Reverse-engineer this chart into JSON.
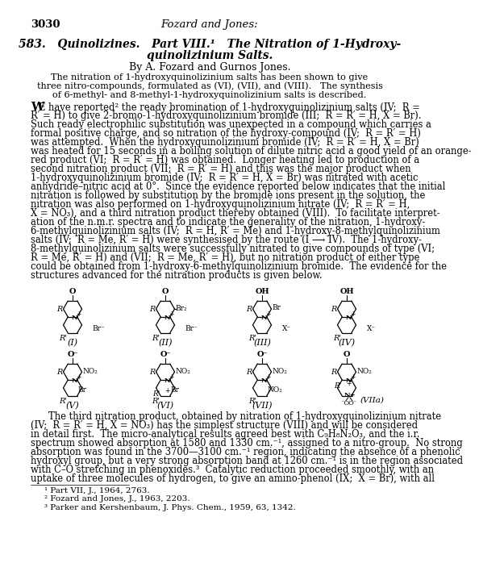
{
  "page_number": "3030",
  "header": "Fozard and Jones:",
  "title_line1": "583.   Quinolizines.   Part VIII.¹   The Nitration of 1-Hydroxy-",
  "title_line2": "quinolizinium Salts.",
  "authors": "By A. Fozard and Gurnos Jones.",
  "abstract": [
    "The nitration of 1-hydroxyquinolizinium salts has been shown to give",
    "three nitro-compounds, formulated as (VI), (VII), and (VIII).   The synthesis",
    "of 6-methyl- and 8-methyl-1-hydroxyquinolizinium salts is described."
  ],
  "body1": [
    "E have reported² the ready bromination of 1-hydroxyquinolizinium salts (IV;  R =",
    "R′ = H) to give 2-bromo-1-hydroxyquinolizinium bromide (III;  R = R′ = H, X = Br).",
    "Such ready electrophilic substitution was unexpected in a compound which carries a",
    "formal positive charge, and so nitration of the hydroxy-compound (IV;  R = R′ = H)",
    "was attempted.  When the hydroxyquinolizinium bromide (IV;  R = R′ = H, X = Br)",
    "was heated for 15 seconds in a boiling solution of dilute nitric acid a good yield of an orange-",
    "red product (VI;  R = R′ = H) was obtained.  Longer heating led to production of a",
    "second nitration product (VII;  R = R′ = H) and this was the major product when",
    "1-hydroxyquinolizinium bromide (IV;  R = R′ = H, X = Br) was nitrated with acetic",
    "anhydride–nitric acid at 0°.  Since the evidence reported below indicates that the initial",
    "nitration is followed by substitution by the bromide ions present in the solution, the",
    "nitration was also performed on 1-hydroxyquinolizinium nitrate (IV;  R = R′ = H,",
    "X = NO₃), and a third nitration product thereby obtained (VIII).  To facilitate interpret-",
    "ation of the n.m.r. spectra and to indicate the generality of the nitration, 1-hydroxy-",
    "6-methylquinolizinium salts (IV;  R = H, R′ = Me) and 1-hydroxy-8-methylquinolizinium",
    "salts (IV;  R = Me, R′ = H) were synthesised by the route (I ⟶ IV).  The 1-hydroxy-",
    "8-methylquinolizinium salts were successfully nitrated to give compounds of type (VI;",
    "R = Me, R′ = H) and (VII;  R = Me, R′ = H), but no nitration product of either type",
    "could be obtained from 1-hydroxy-6-methylquinolizinium bromide.  The evidence for the",
    "structures advanced for the nitration products is given below."
  ],
  "body2": [
    "The third nitration product, obtained by nitration of 1-hydroxyquinolizinium nitrate",
    "(IV;  R = R′ = H, X = NO₃) has the simplest structure (VIII) and will be considered",
    "in detail first.  The micro-analytical results agreed best with C₉H₈N₂O₃, and the i.r.",
    "spectrum showed absorption at 1580 and 1330 cm.⁻¹, assigned to a nitro-group.  No strong",
    "absorption was found in the 3700—3100 cm.⁻¹ region, indicating the absence of a phenolic",
    "hydroxyl group, but a very strong absorption band at 1260 cm.⁻¹ is in the region associated",
    "with C–O stretching in phenoxides.³  Catalytic reduction proceeded smoothly, with an",
    "uptake of three molecules of hydrogen, to give an amino-phenol (IX;  X = Br), with all"
  ],
  "footnotes": [
    "¹ Part VII, J., 1964, 2763.",
    "² Fozard and Jones, J., 1963, 2203.",
    "³ Parker and Kershenbaum, J. Phys. Chem., 1959, 63, 1342."
  ],
  "struct_labels": [
    "(I)",
    "(II)",
    "(III)",
    "(IV)",
    "(V)",
    "(VI)",
    "(VII)",
    "(VIIa)"
  ],
  "bg_color": "#ffffff",
  "text_color": "#000000"
}
